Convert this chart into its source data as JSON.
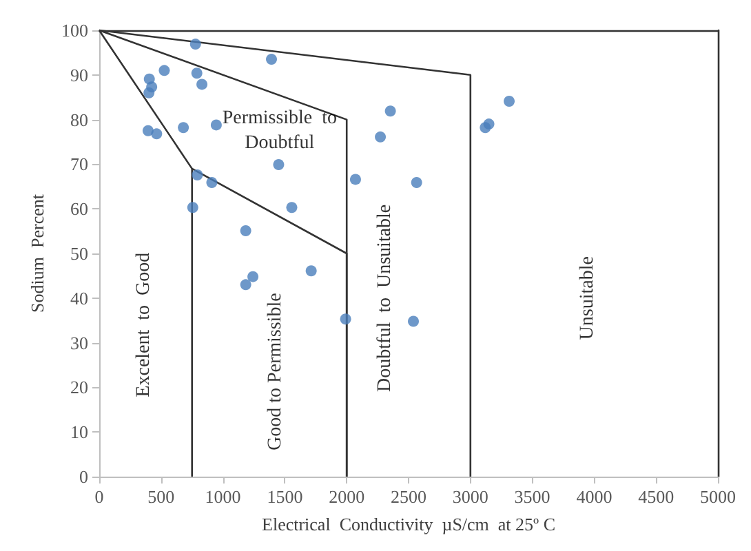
{
  "chart_data": {
    "type": "scatter",
    "xlabel": "Electrical  Conductivity  µS/cm  at 25º C",
    "ylabel": "Sodium  Percent",
    "xlim": [
      0,
      5000
    ],
    "xticks": [
      0,
      500,
      1000,
      1500,
      2000,
      2500,
      3000,
      3500,
      4000,
      4500,
      5000
    ],
    "ylim": [
      0,
      100
    ],
    "yticks": [
      0,
      10,
      20,
      30,
      40,
      50,
      60,
      70,
      80,
      90,
      100
    ],
    "grid": false,
    "marker": "circle",
    "series": [
      {
        "color": "#4a7ebb",
        "x": [
          778,
          1392,
          526,
          789,
          405,
          424,
          402,
          830,
          395,
          464,
          680,
          946,
          1450,
          793,
          910,
          756,
          1556,
          1184,
          1713,
          1242,
          1184,
          2071,
          2272,
          2353,
          2565,
          1991,
          2539,
          3313,
          3120,
          3149
        ],
        "values": [
          96.9,
          93.5,
          91.0,
          90.4,
          89.1,
          87.3,
          86.0,
          87.9,
          77.5,
          76.8,
          78.2,
          78.8,
          69.9,
          67.6,
          65.9,
          60.3,
          60.3,
          55.1,
          46.1,
          44.8,
          43.0,
          66.6,
          76.1,
          81.9,
          65.9,
          35.3,
          34.8,
          84.1,
          78.2,
          79.0
        ]
      },
      {
        "type": "line",
        "color": "#333333",
        "marker": "none",
        "x": [
          0,
          750,
          750
        ],
        "values": [
          100,
          69,
          0
        ]
      },
      {
        "type": "line",
        "color": "#333333",
        "marker": "none",
        "x": [
          750,
          2000,
          2000
        ],
        "values": [
          69,
          50,
          0
        ]
      },
      {
        "type": "line",
        "color": "#333333",
        "marker": "none",
        "x": [
          0,
          2000,
          2000
        ],
        "values": [
          100,
          80,
          0
        ]
      },
      {
        "type": "line",
        "color": "#333333",
        "marker": "none",
        "x": [
          0,
          3000,
          3000
        ],
        "values": [
          100,
          90,
          0
        ]
      }
    ],
    "annotations": [
      "Excelent  to  Good",
      "Permissible  to\nDoubtful",
      "Good to Permissible",
      "Doubtful  to  Unsuitable",
      "Unsuitable"
    ]
  }
}
